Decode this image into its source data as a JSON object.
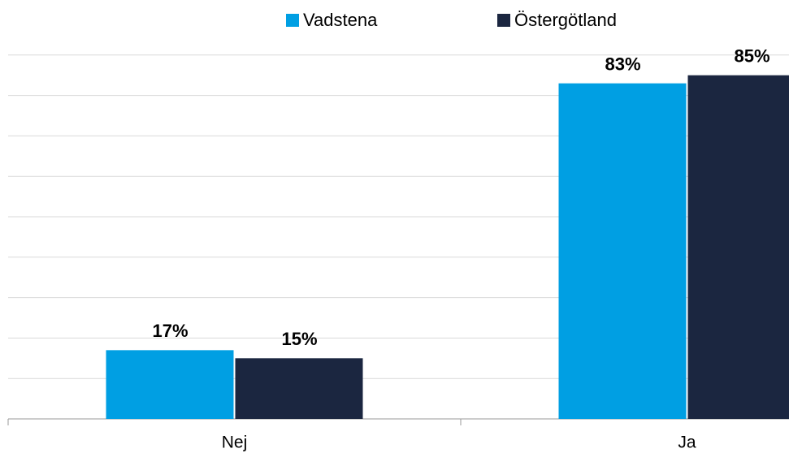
{
  "chart_data": {
    "type": "bar",
    "categories": [
      "Nej",
      "Ja"
    ],
    "series": [
      {
        "name": "Vadstena",
        "color": "#009fe3",
        "values": [
          17,
          83
        ],
        "value_labels": [
          "17%",
          "83%"
        ]
      },
      {
        "name": "Östergötland",
        "color": "#1b2640",
        "values": [
          15,
          85
        ],
        "value_labels": [
          "15%",
          "85%"
        ]
      }
    ],
    "ylim": [
      0,
      100
    ],
    "yticks": [
      0,
      10,
      20,
      30,
      40,
      50,
      60,
      70,
      80,
      90
    ],
    "grid": true
  }
}
